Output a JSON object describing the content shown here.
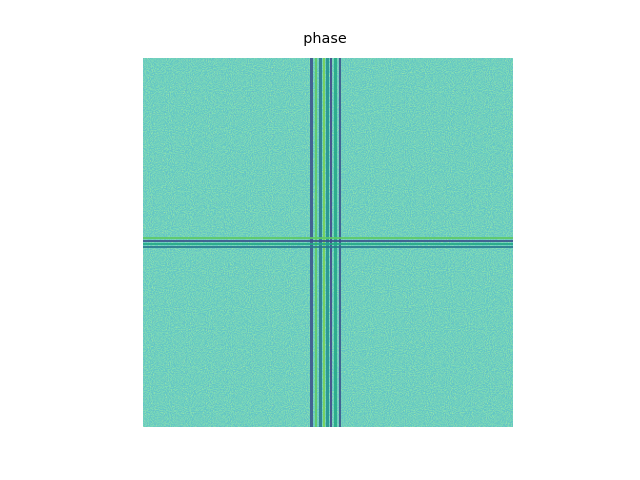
{
  "image": {
    "title": "phase"
  }
}
